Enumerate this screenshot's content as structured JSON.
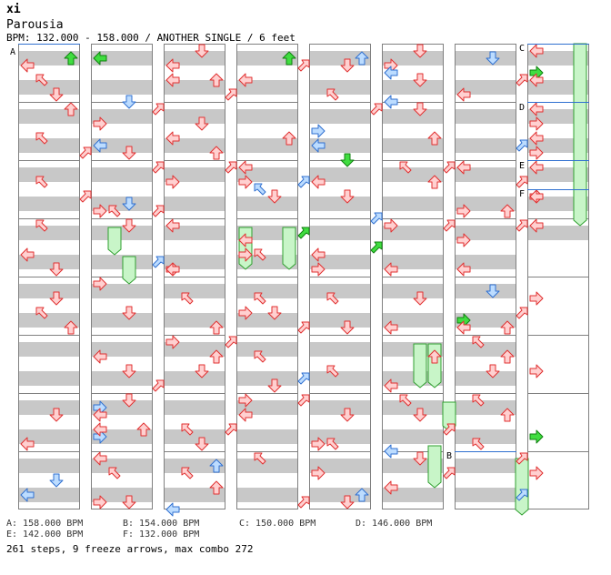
{
  "header": {
    "artist": "xi",
    "title": "Parousia",
    "info": "BPM: 132.000 - 158.000 / ANOTHER SINGLE / 6 feet"
  },
  "legend": [
    "A: 158.000 BPM",
    "B: 154.000 BPM",
    "C: 150.000 BPM",
    "D: 146.000 BPM",
    "E: 142.000 BPM",
    "F: 132.000 BPM"
  ],
  "stats": "261 steps, 9 freeze arrows, max combo 272",
  "markers": [
    {
      "label": "A",
      "col": 0,
      "y": 56
    },
    {
      "label": "B",
      "col": 6,
      "y": 500
    },
    {
      "label": "C",
      "col": 7,
      "y": 52
    },
    {
      "label": "D",
      "col": 7,
      "y": 117
    },
    {
      "label": "E",
      "col": 7,
      "y": 181
    },
    {
      "label": "F",
      "col": 7,
      "y": 212
    }
  ],
  "colors": {
    "red_fill": "#ffd0d0",
    "red_stroke": "#e03030",
    "blue_fill": "#bcdcff",
    "blue_stroke": "#3070d0",
    "green_fill": "#40dd40",
    "green_stroke": "#108010",
    "freeze_fill": "#c8f5c8",
    "freeze_stroke": "#30a030",
    "stripe": "#c8c8c8",
    "bpm_line": "#3070d0"
  }
}
